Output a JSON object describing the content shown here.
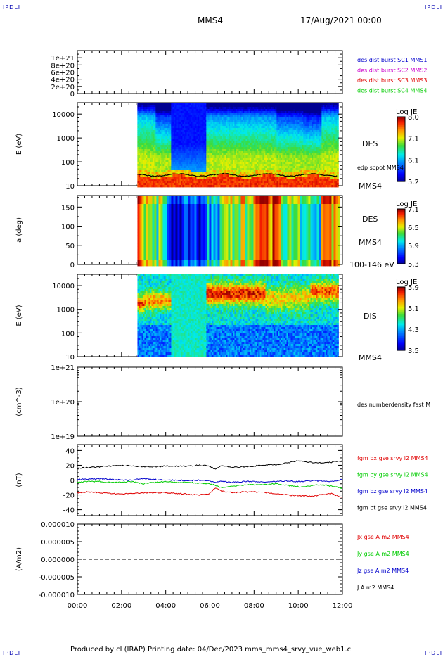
{
  "corner_labels": [
    "IPDLI",
    "IPDLI",
    "IPDLI",
    "IPDLI"
  ],
  "header": {
    "spacecraft": "MMS4",
    "date": "17/Aug/2021 00:00"
  },
  "footer": {
    "text": "Produced by cl (IRAP)   Printing date: 04/Dec/2023   mms_mms4_srvy_vue_web1.cl"
  },
  "colors": {
    "red": "#e00000",
    "green": "#00cc00",
    "blue": "#0000cc",
    "magenta": "#cc00cc",
    "black": "#000000"
  },
  "chart_data": [
    {
      "type": "line",
      "panel": "burst-flags",
      "yticks": [
        "1e+21",
        "8e+20",
        "6e+20",
        "4e+20",
        "2e+20",
        "0"
      ],
      "ylim": [
        0,
        1.2e+21
      ],
      "legend": [
        {
          "name": "des dist burst SC1 MMS1",
          "color": "#0000cc"
        },
        {
          "name": "des dist burst SC2 MMS2",
          "color": "#cc00cc"
        },
        {
          "name": "des dist burst SC3 MMS3",
          "color": "#e00000"
        },
        {
          "name": "des dist burst SC4 MMS4",
          "color": "#00cc00"
        }
      ]
    },
    {
      "type": "heatmap",
      "panel": "des-energy-spectrogram",
      "ylabel": "E (eV)",
      "yscale": "log",
      "yticks": [
        "10000",
        "1000",
        "100",
        "10"
      ],
      "ylim": [
        10,
        30000
      ],
      "data_start": "02:43",
      "species": "DES",
      "overlay": "edp scpot MMS4",
      "spacecraft": "MMS4",
      "colorbar": {
        "title": "Log JE",
        "ticks": [
          "8.0",
          "7.1",
          "6.1",
          "5.2"
        ],
        "range": [
          5.2,
          8.0
        ]
      }
    },
    {
      "type": "heatmap",
      "panel": "des-pitch-angle",
      "ylabel": "a (deg)",
      "yticks": [
        "150",
        "100",
        "50",
        "0"
      ],
      "ylim": [
        0,
        180
      ],
      "species": "DES",
      "spacecraft": "MMS4",
      "energy_range": "100-146 eV",
      "colorbar": {
        "title": "Log JE",
        "ticks": [
          "7.1",
          "6.5",
          "5.9",
          "5.3"
        ],
        "range": [
          5.3,
          7.1
        ]
      }
    },
    {
      "type": "heatmap",
      "panel": "dis-energy-spectrogram",
      "ylabel": "E (eV)",
      "yscale": "log",
      "yticks": [
        "10000",
        "1000",
        "100",
        "10"
      ],
      "ylim": [
        10,
        30000
      ],
      "species": "DIS",
      "spacecraft": "MMS4",
      "colorbar": {
        "title": "Log JE",
        "ticks": [
          "5.9",
          "5.1",
          "4.3",
          "3.5"
        ],
        "range": [
          3.5,
          5.9
        ]
      }
    },
    {
      "type": "line",
      "panel": "number-density",
      "ylabel": "(cm^-3)",
      "yscale": "log",
      "yticks": [
        "1e+21",
        "1e+20",
        "1e+19"
      ],
      "ylim": [
        1e+19,
        1e+21
      ],
      "legend": [
        {
          "name": "des numberdensity fast M",
          "color": "#000000"
        }
      ]
    },
    {
      "type": "line",
      "panel": "magnetic-field",
      "ylabel": "(nT)",
      "yticks": [
        "40",
        "20",
        "0",
        "-20",
        "-40"
      ],
      "ylim": [
        -48,
        48
      ],
      "x_hours": [
        0,
        0.5,
        1,
        1.5,
        2,
        2.5,
        3,
        3.5,
        4,
        4.5,
        5,
        5.5,
        6,
        6.25,
        6.5,
        7,
        7.5,
        8,
        8.5,
        9,
        9.5,
        10,
        10.5,
        11,
        11.5,
        12
      ],
      "series": [
        {
          "name": "fgm bx gse srvy l2 MMS4",
          "color": "#e00000",
          "values": [
            -17,
            -16,
            -17,
            -18,
            -19,
            -18,
            -17,
            -17,
            -17,
            -18,
            -19,
            -20,
            -18,
            -10,
            -15,
            -17,
            -16,
            -16,
            -17,
            -18,
            -20,
            -21,
            -22,
            -20,
            -18,
            -24
          ]
        },
        {
          "name": "fgm by gse srvy l2 MMS4",
          "color": "#00cc00",
          "values": [
            -3,
            -2,
            -2,
            -3,
            -3,
            -2,
            -5,
            -3,
            -2,
            -3,
            -3,
            -4,
            -5,
            -7,
            -10,
            -8,
            -7,
            -6,
            -6,
            -5,
            -7,
            -9,
            -8,
            -6,
            -8,
            -11
          ]
        },
        {
          "name": "fgm bz gse srvy l2 MMS4",
          "color": "#0000cc",
          "values": [
            1,
            1,
            2,
            1,
            0,
            0,
            2,
            1,
            0,
            0,
            -1,
            0,
            -1,
            -3,
            -2,
            -3,
            -2,
            -2,
            -3,
            -2,
            -1,
            -2,
            -1,
            -1,
            -2,
            1
          ]
        },
        {
          "name": "fgm bt gse srvy l2 MMS4",
          "color": "#000000",
          "values": [
            16,
            17,
            18,
            19,
            20,
            19,
            18,
            18,
            19,
            19,
            19,
            20,
            19,
            14,
            20,
            17,
            18,
            19,
            20,
            21,
            23,
            26,
            24,
            23,
            24,
            26
          ]
        }
      ]
    },
    {
      "type": "line",
      "panel": "current-density",
      "ylabel": "(A/m2)",
      "yticks": [
        "0.000010",
        "0.000005",
        "0.000000",
        "-0.000005",
        "-0.000010"
      ],
      "ylim": [
        -1e-05,
        1e-05
      ],
      "legend": [
        {
          "name": "Jx gse A m2 MMS4",
          "color": "#e00000"
        },
        {
          "name": "Jy gse A m2 MMS4",
          "color": "#00cc00"
        },
        {
          "name": "Jz gse A m2 MMS4",
          "color": "#0000cc"
        },
        {
          "name": "J A m2 MMS4",
          "color": "#000000"
        }
      ]
    }
  ],
  "x_axis": {
    "ticks": [
      "00:00",
      "02:00",
      "04:00",
      "06:00",
      "08:00",
      "10:00",
      "12:00"
    ],
    "xlim_hours": [
      0,
      12
    ]
  }
}
